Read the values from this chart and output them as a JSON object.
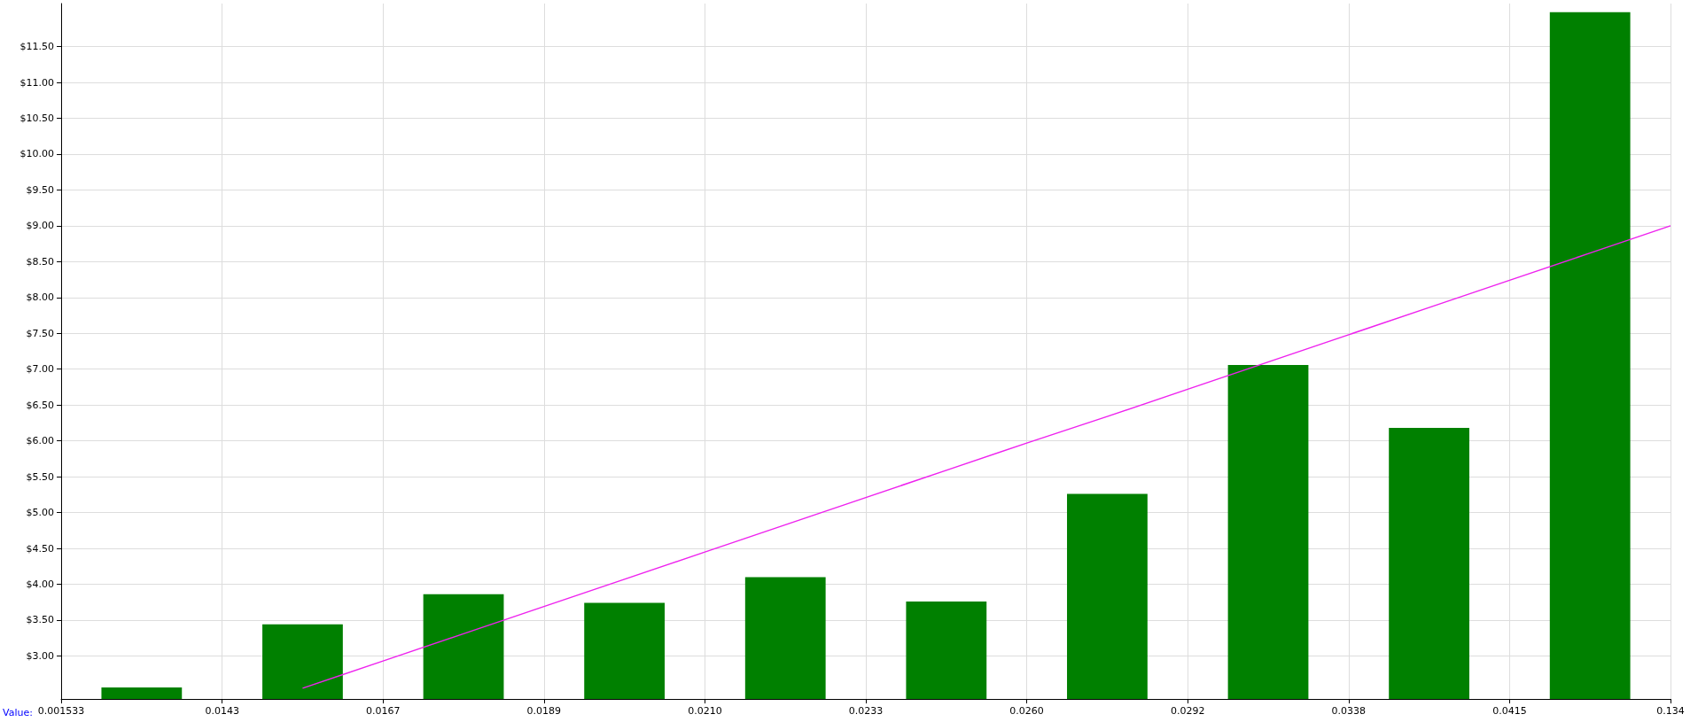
{
  "chart_data": {
    "type": "bar",
    "xlabel": "Value:",
    "categories": [
      "0.001533",
      null,
      "0.0143",
      null,
      "0.0167",
      null,
      "0.0189",
      null,
      "0.0210",
      null,
      "0.0233",
      null,
      "0.0260",
      null,
      "0.0292",
      null,
      "0.0338",
      null,
      "0.0415",
      null,
      "0.134"
    ],
    "series": [
      {
        "color": "#008000",
        "values": [
          null,
          2.56,
          null,
          3.44,
          null,
          3.86,
          null,
          3.74,
          null,
          4.1,
          null,
          3.76,
          null,
          5.26,
          null,
          7.06,
          null,
          6.18,
          null,
          11.98,
          null
        ]
      },
      {
        "type": "line",
        "color": "#ee22ee",
        "values": [
          null,
          null,
          null,
          2.55,
          2.93,
          3.31,
          3.69,
          4.07,
          4.45,
          4.83,
          5.21,
          5.59,
          5.97,
          6.34,
          6.72,
          7.1,
          7.48,
          7.86,
          8.24,
          8.62,
          9.0
        ]
      }
    ],
    "ylim": [
      2.4,
      12.1
    ],
    "yticks": [
      {
        "value": 3,
        "label": "$3.00"
      },
      {
        "value": 3.5,
        "label": "$3.50"
      },
      {
        "value": 4,
        "label": "$4.00"
      },
      {
        "value": 4.5,
        "label": "$4.50"
      },
      {
        "value": 5,
        "label": "$5.00"
      },
      {
        "value": 5.5,
        "label": "$5.50"
      },
      {
        "value": 6,
        "label": "$6.00"
      },
      {
        "value": 6.5,
        "label": "$6.50"
      },
      {
        "value": 7,
        "label": "$7.00"
      },
      {
        "value": 7.5,
        "label": "$7.50"
      },
      {
        "value": 8,
        "label": "$8.00"
      },
      {
        "value": 8.5,
        "label": "$8.50"
      },
      {
        "value": 9,
        "label": "$9.00"
      },
      {
        "value": 9.5,
        "label": "$9.50"
      },
      {
        "value": 10,
        "label": "$10.00"
      },
      {
        "value": 10.5,
        "label": "$10.50"
      },
      {
        "value": 11,
        "label": "$11.00"
      },
      {
        "value": 11.5,
        "label": "$11.50"
      }
    ],
    "grid": true
  }
}
